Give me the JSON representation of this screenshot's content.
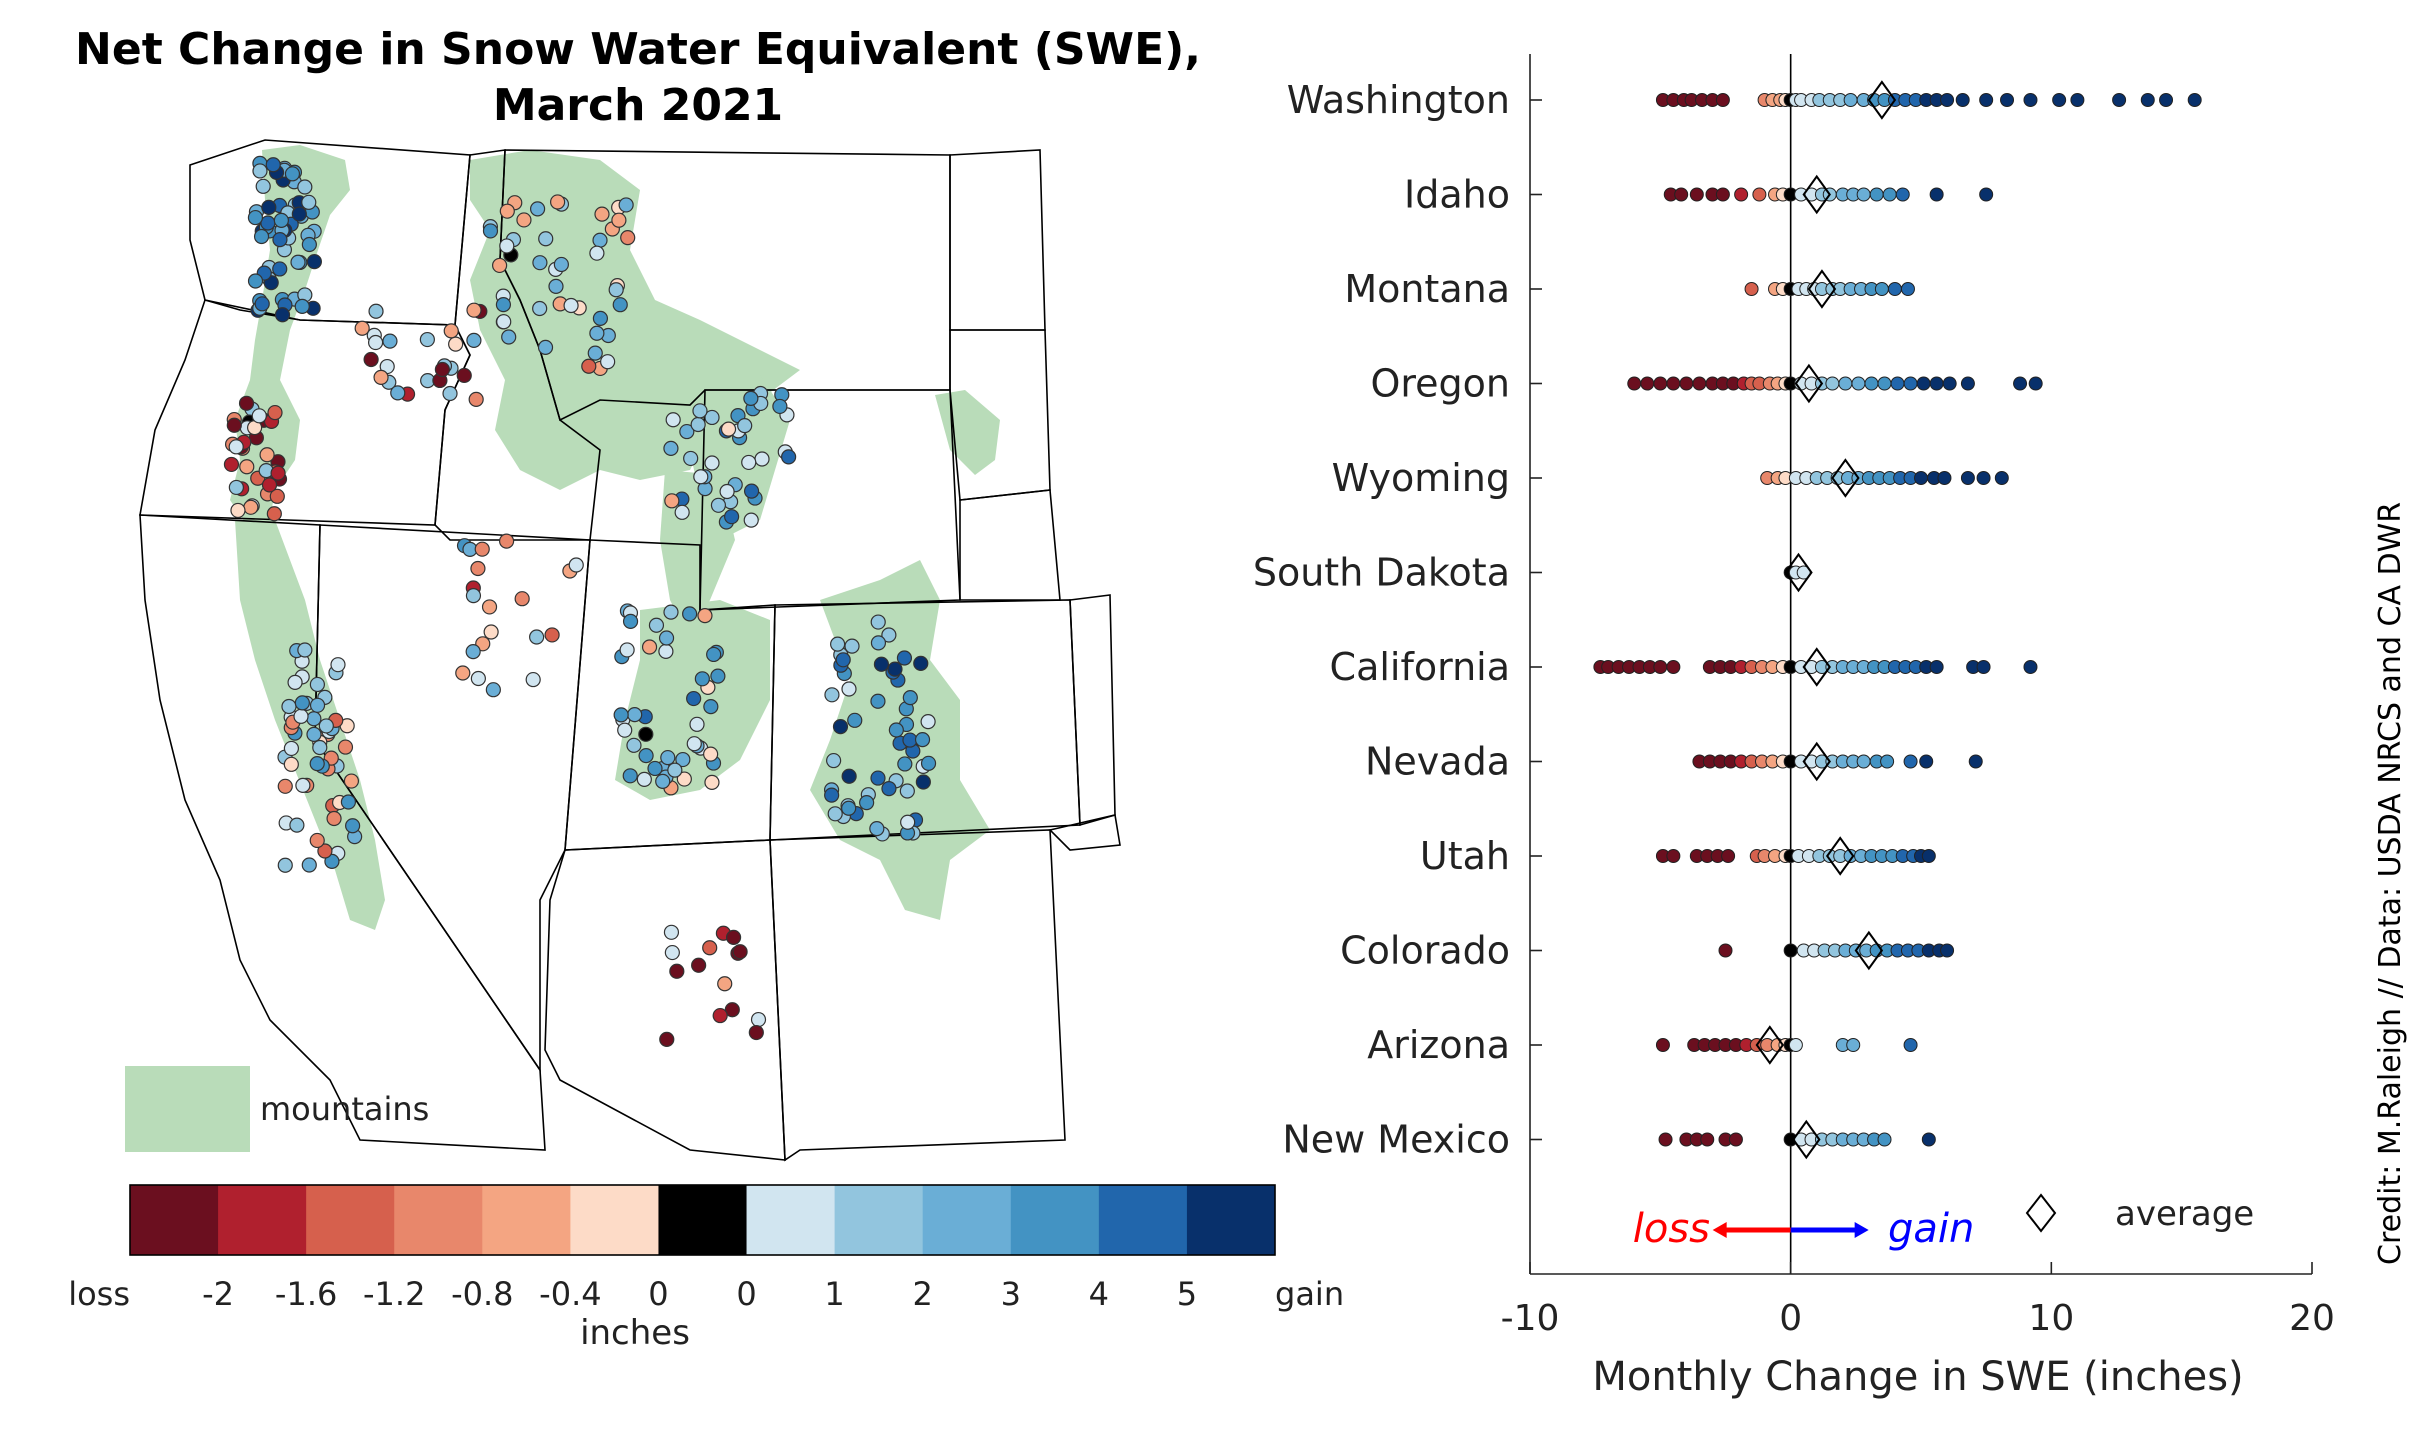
{
  "title": {
    "line1": "Net Change in Snow Water Equivalent (SWE),",
    "line2": "March 2021"
  },
  "map": {
    "legend_label": "mountains",
    "mountain_color": "#b9dcb9",
    "colorbar": {
      "colors": [
        "#6b0f1f",
        "#b0202e",
        "#d6604d",
        "#e8876b",
        "#f4a582",
        "#fddbc7",
        "#000000",
        "#d1e5f0",
        "#92c5de",
        "#6aaed6",
        "#4393c3",
        "#2166ac",
        "#08306b"
      ],
      "tick_labels": [
        "loss",
        "-2",
        "-1.6",
        "-1.2",
        "-0.8",
        "-0.4",
        "0",
        "0",
        "1",
        "2",
        "3",
        "4",
        "5",
        "gain"
      ],
      "unit_label": "inches"
    }
  },
  "chart_data": {
    "type": "scatter",
    "xlabel": "Monthly Change in SWE (inches)",
    "xlim": [
      -10,
      20
    ],
    "xticks": [
      -10,
      0,
      10,
      20
    ],
    "xtick_labels": [
      "-10",
      "0",
      "10",
      "20"
    ],
    "states": [
      {
        "name": "Washington",
        "average": 3.5,
        "values": [
          -4.9,
          -4.5,
          -4.1,
          -3.8,
          -3.4,
          -3.0,
          -2.6,
          -1.0,
          -0.7,
          -0.4,
          -0.2,
          0.0,
          0.2,
          0.4,
          0.8,
          1.1,
          1.5,
          1.9,
          2.3,
          2.8,
          3.2,
          3.6,
          4.0,
          4.4,
          4.8,
          5.2,
          5.6,
          6.0,
          6.6,
          7.5,
          8.3,
          9.2,
          10.3,
          11.0,
          12.6,
          13.7,
          14.4,
          15.5
        ]
      },
      {
        "name": "Idaho",
        "average": 1.0,
        "values": [
          -4.6,
          -4.2,
          -3.6,
          -3.0,
          -2.6,
          -1.9,
          -1.2,
          -0.6,
          -0.3,
          0.0,
          0.4,
          0.8,
          1.2,
          1.5,
          2.0,
          2.4,
          2.8,
          3.3,
          3.8,
          4.3,
          5.6,
          7.5
        ]
      },
      {
        "name": "Montana",
        "average": 1.2,
        "values": [
          -1.5,
          -0.6,
          -0.3,
          0.0,
          0.3,
          0.6,
          0.9,
          1.2,
          1.6,
          1.9,
          2.3,
          2.7,
          3.1,
          3.5,
          4.0,
          4.5
        ]
      },
      {
        "name": "Oregon",
        "average": 0.7,
        "values": [
          -6.0,
          -5.5,
          -5.0,
          -4.5,
          -4.0,
          -3.5,
          -3.0,
          -2.6,
          -2.2,
          -1.8,
          -1.5,
          -1.2,
          -0.8,
          -0.5,
          -0.2,
          0.0,
          0.4,
          0.8,
          1.2,
          1.6,
          2.1,
          2.6,
          3.1,
          3.6,
          4.1,
          4.6,
          5.1,
          5.6,
          6.1,
          6.8,
          8.8,
          9.4
        ]
      },
      {
        "name": "Wyoming",
        "average": 2.1,
        "values": [
          -0.9,
          -0.5,
          -0.2,
          0.2,
          0.6,
          1.0,
          1.4,
          1.8,
          2.2,
          2.6,
          3.0,
          3.4,
          3.8,
          4.2,
          4.6,
          5.0,
          5.5,
          5.9,
          6.8,
          7.4,
          8.1
        ]
      },
      {
        "name": "South Dakota",
        "average": 0.3,
        "values": [
          0.0,
          0.2,
          0.5
        ]
      },
      {
        "name": "California",
        "average": 1.0,
        "values": [
          -7.3,
          -7.0,
          -6.6,
          -6.2,
          -5.8,
          -5.4,
          -5.0,
          -4.5,
          -3.1,
          -2.7,
          -2.3,
          -1.9,
          -1.5,
          -1.1,
          -0.7,
          -0.3,
          0.0,
          0.4,
          0.8,
          1.2,
          1.6,
          2.0,
          2.4,
          2.8,
          3.2,
          3.6,
          4.0,
          4.4,
          4.8,
          5.2,
          5.6,
          7.0,
          7.4,
          9.2
        ]
      },
      {
        "name": "Nevada",
        "average": 1.0,
        "values": [
          -3.5,
          -3.1,
          -2.7,
          -2.3,
          -1.9,
          -1.5,
          -1.1,
          -0.7,
          -0.3,
          0.0,
          0.4,
          0.8,
          1.2,
          1.6,
          2.0,
          2.4,
          2.8,
          3.3,
          3.7,
          4.6,
          5.2,
          7.1
        ]
      },
      {
        "name": "Utah",
        "average": 1.9,
        "values": [
          -4.9,
          -4.5,
          -3.6,
          -3.2,
          -2.8,
          -2.4,
          -1.3,
          -1.0,
          -0.6,
          -0.2,
          0.0,
          0.3,
          0.7,
          1.1,
          1.5,
          1.9,
          2.3,
          2.7,
          3.1,
          3.5,
          3.9,
          4.3,
          4.7,
          5.0,
          5.3
        ]
      },
      {
        "name": "Colorado",
        "average": 3.0,
        "values": [
          -2.5,
          0.0,
          0.5,
          0.9,
          1.3,
          1.7,
          2.1,
          2.5,
          2.9,
          3.3,
          3.7,
          4.1,
          4.5,
          4.9,
          5.3,
          5.7,
          6.0
        ]
      },
      {
        "name": "Arizona",
        "average": -0.8,
        "values": [
          -4.9,
          -3.7,
          -3.3,
          -2.9,
          -2.5,
          -2.1,
          -1.7,
          -1.3,
          -0.9,
          -0.5,
          -0.2,
          0.0,
          0.2,
          2.0,
          2.4,
          4.6
        ]
      },
      {
        "name": "New Mexico",
        "average": 0.6,
        "values": [
          -4.8,
          -4.0,
          -3.6,
          -3.2,
          -2.5,
          -2.1,
          0.0,
          0.4,
          0.8,
          1.2,
          1.6,
          2.0,
          2.4,
          2.8,
          3.2,
          3.6,
          5.3
        ]
      }
    ],
    "legend": {
      "average_label": "average"
    },
    "annotations": {
      "loss": "loss",
      "gain": "gain",
      "loss_color": "#ff0000",
      "gain_color": "#0000ff"
    }
  },
  "credit": "Credit: M.Raleigh // Data: USDA NRCS and CA DWR"
}
